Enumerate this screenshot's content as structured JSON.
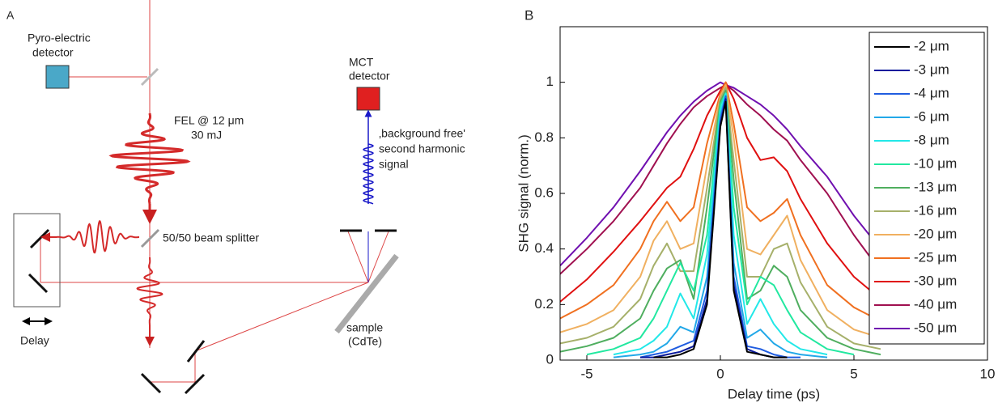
{
  "diagram": {
    "panel_label": "A",
    "pyro_label": [
      "Pyro-electric",
      "detector"
    ],
    "fel_label": [
      "FEL @ 12 μm",
      "30 mJ"
    ],
    "mct_label": [
      "MCT",
      "detector"
    ],
    "signal_label": [
      "‚background free'",
      "second harmonic",
      "signal"
    ],
    "splitter_label": "50/50 beam splitter",
    "delay_label": "Delay",
    "sample_label": [
      "sample",
      "(CdTe)"
    ]
  },
  "chart_data": {
    "type": "line",
    "panel_label": "B",
    "xlabel": "Delay time (ps)",
    "ylabel": "SHG signal (norm.)",
    "xlim": [
      -6,
      10
    ],
    "ylim": [
      0,
      1.2
    ],
    "xticks": [
      -5,
      0,
      5,
      10
    ],
    "yticks": [
      0,
      0.2,
      0.4,
      0.6,
      0.8,
      1
    ],
    "legend": "upper right",
    "x": [
      -6,
      -5,
      -4,
      -3,
      -2.5,
      -2,
      -1.5,
      -1,
      -0.5,
      0,
      0.2,
      0.5,
      1,
      1.5,
      2,
      2.5,
      3,
      4,
      5,
      6
    ],
    "series": [
      {
        "name": "-2 μm",
        "color": "#000000",
        "values": [
          null,
          null,
          null,
          null,
          0.01,
          0.01,
          0.02,
          0.04,
          0.2,
          0.84,
          0.93,
          0.25,
          0.03,
          0.02,
          0.01,
          0.01,
          null,
          null,
          null,
          null
        ]
      },
      {
        "name": "-3 μm",
        "color": "#0a1a9c",
        "values": [
          null,
          null,
          null,
          0.01,
          0.01,
          0.02,
          0.03,
          0.05,
          0.22,
          0.85,
          0.94,
          0.27,
          0.04,
          0.02,
          0.01,
          0.01,
          null,
          null,
          null,
          null
        ]
      },
      {
        "name": "-4 μm",
        "color": "#1f5ce0",
        "values": [
          null,
          null,
          null,
          0.01,
          0.02,
          0.03,
          0.05,
          0.07,
          0.25,
          0.86,
          0.95,
          0.3,
          0.05,
          0.04,
          0.02,
          0.01,
          0.01,
          null,
          null,
          null
        ]
      },
      {
        "name": "-6 μm",
        "color": "#22a8e8",
        "values": [
          null,
          null,
          0.01,
          0.02,
          0.03,
          0.06,
          0.12,
          0.1,
          0.3,
          0.88,
          0.95,
          0.35,
          0.08,
          0.11,
          0.06,
          0.03,
          0.02,
          0.01,
          null,
          null
        ]
      },
      {
        "name": "-8 μm",
        "color": "#22e8e8",
        "values": [
          null,
          null,
          0.02,
          0.04,
          0.07,
          0.12,
          0.24,
          0.15,
          0.38,
          0.9,
          0.96,
          0.45,
          0.13,
          0.22,
          0.13,
          0.07,
          0.04,
          0.02,
          null,
          null
        ]
      },
      {
        "name": "-10 μm",
        "color": "#22e8a0",
        "values": [
          null,
          0.02,
          0.04,
          0.08,
          0.15,
          0.25,
          0.35,
          0.25,
          0.45,
          0.92,
          0.96,
          0.55,
          0.2,
          0.3,
          0.27,
          0.18,
          0.1,
          0.04,
          0.02,
          null
        ]
      },
      {
        "name": "-13 μm",
        "color": "#4fae5f",
        "values": [
          0.03,
          0.05,
          0.08,
          0.15,
          0.25,
          0.33,
          0.36,
          0.22,
          0.55,
          0.93,
          0.97,
          0.65,
          0.22,
          0.25,
          0.34,
          0.3,
          0.18,
          0.08,
          0.04,
          0.02
        ]
      },
      {
        "name": "-16 μm",
        "color": "#a6b06a",
        "values": [
          0.06,
          0.08,
          0.12,
          0.22,
          0.34,
          0.42,
          0.32,
          0.32,
          0.62,
          0.94,
          0.98,
          0.72,
          0.3,
          0.3,
          0.4,
          0.42,
          0.28,
          0.12,
          0.06,
          0.04
        ]
      },
      {
        "name": "-20 μm",
        "color": "#f0b060",
        "values": [
          0.1,
          0.13,
          0.18,
          0.3,
          0.43,
          0.5,
          0.4,
          0.42,
          0.7,
          0.95,
          0.99,
          0.8,
          0.4,
          0.38,
          0.45,
          0.52,
          0.36,
          0.18,
          0.11,
          0.08
        ]
      },
      {
        "name": "-25 μm",
        "color": "#f07020",
        "values": [
          0.15,
          0.2,
          0.27,
          0.4,
          0.5,
          0.57,
          0.5,
          0.55,
          0.78,
          0.96,
          1.0,
          0.85,
          0.55,
          0.5,
          0.53,
          0.58,
          0.45,
          0.27,
          0.19,
          0.14
        ]
      },
      {
        "name": "-30 μm",
        "color": "#e01010",
        "values": [
          0.21,
          0.29,
          0.39,
          0.5,
          0.56,
          0.62,
          0.66,
          0.76,
          0.88,
          0.97,
          1.0,
          0.94,
          0.8,
          0.72,
          0.73,
          0.68,
          0.58,
          0.42,
          0.3,
          0.22
        ]
      },
      {
        "name": "-40 μm",
        "color": "#a01050",
        "values": [
          0.31,
          0.4,
          0.5,
          0.62,
          0.7,
          0.78,
          0.85,
          0.91,
          0.95,
          0.98,
          0.99,
          0.97,
          0.92,
          0.88,
          0.83,
          0.79,
          0.72,
          0.6,
          0.45,
          0.32
        ]
      },
      {
        "name": "-50 μm",
        "color": "#7010b0",
        "values": [
          0.34,
          0.44,
          0.55,
          0.68,
          0.75,
          0.82,
          0.88,
          0.93,
          0.97,
          1.0,
          0.99,
          0.98,
          0.95,
          0.92,
          0.88,
          0.83,
          0.77,
          0.66,
          0.52,
          0.4
        ]
      }
    ]
  }
}
